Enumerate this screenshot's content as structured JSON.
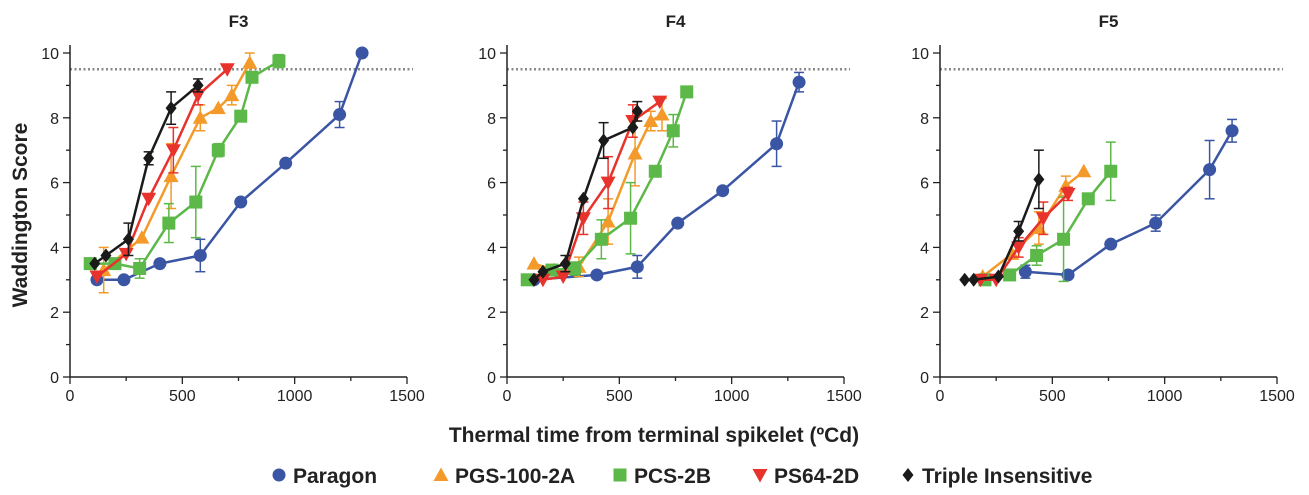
{
  "chart_data": {
    "type": "line",
    "shared": {
      "xlabel": "Thermal time from terminal spikelet (ºCd)",
      "ylabel": "Waddington Score",
      "xlim": [
        0,
        1500
      ],
      "ylim": [
        0,
        10
      ],
      "xticks": [
        0,
        500,
        1000,
        1500
      ],
      "yticks": [
        0,
        2,
        4,
        6,
        8,
        10
      ],
      "reference_line": 9.5,
      "grid": false,
      "legend_position": "bottom"
    },
    "series_styles": [
      {
        "name": "Paragon",
        "color": "#3a55a4",
        "marker": "circle"
      },
      {
        "name": "PGS-100-2A",
        "color": "#f39a2b",
        "marker": "triangle-up"
      },
      {
        "name": "PCS-2B",
        "color": "#5cb848",
        "marker": "square"
      },
      {
        "name": "PS64-2D",
        "color": "#e8322c",
        "marker": "triangle-down"
      },
      {
        "name": "Triple Insensitive",
        "color": "#1a1a1a",
        "marker": "diamond"
      }
    ],
    "panels": [
      {
        "title": "F3",
        "series": [
          {
            "name": "Paragon",
            "x": [
              120,
              240,
              400,
              580,
              760,
              960,
              1200,
              1300
            ],
            "y": [
              3.0,
              3.0,
              3.5,
              3.75,
              5.4,
              6.6,
              8.1,
              10.0
            ],
            "err": [
              0,
              0,
              0,
              0.5,
              0,
              0,
              0.4,
              0
            ]
          },
          {
            "name": "PGS-100-2A",
            "x": [
              150,
              320,
              450,
              580,
              660,
              720,
              800
            ],
            "y": [
              3.3,
              4.3,
              6.2,
              8.0,
              8.3,
              8.7,
              9.7
            ],
            "err": [
              0.7,
              0,
              1.0,
              0.4,
              0,
              0.3,
              0.3
            ]
          },
          {
            "name": "PCS-2B",
            "x": [
              90,
              200,
              310,
              440,
              560,
              660,
              760,
              810,
              930
            ],
            "y": [
              3.5,
              3.5,
              3.35,
              4.75,
              5.4,
              7.0,
              8.05,
              9.25,
              9.75
            ],
            "err": [
              0,
              0,
              0.3,
              0.6,
              1.1,
              0.2,
              0,
              0,
              0.2
            ]
          },
          {
            "name": "PS64-2D",
            "x": [
              120,
              250,
              350,
              460,
              570,
              700
            ],
            "y": [
              3.1,
              3.8,
              5.5,
              7.0,
              8.7,
              9.5
            ],
            "err": [
              0,
              0,
              0,
              0.7,
              0.3,
              0
            ]
          },
          {
            "name": "Triple Insensitive",
            "x": [
              110,
              160,
              260,
              350,
              450,
              570
            ],
            "y": [
              3.5,
              3.75,
              4.25,
              6.75,
              8.3,
              9.0
            ],
            "err": [
              0,
              0,
              0.5,
              0.2,
              0.5,
              0.2
            ]
          }
        ]
      },
      {
        "title": "F4",
        "series": [
          {
            "name": "Paragon",
            "x": [
              120,
              400,
              580,
              760,
              960,
              1200,
              1300
            ],
            "y": [
              3.0,
              3.15,
              3.4,
              4.75,
              5.75,
              7.2,
              9.1
            ],
            "err": [
              0,
              0,
              0.35,
              0,
              0,
              0.7,
              0.3
            ]
          },
          {
            "name": "PGS-100-2A",
            "x": [
              120,
              210,
              320,
              450,
              570,
              640,
              690
            ],
            "y": [
              3.5,
              3.3,
              3.4,
              4.8,
              6.9,
              7.9,
              8.1
            ],
            "err": [
              0,
              0,
              0.3,
              0.7,
              1.0,
              0.3,
              0.5
            ]
          },
          {
            "name": "PCS-2B",
            "x": [
              90,
              200,
              300,
              420,
              550,
              660,
              740,
              800
            ],
            "y": [
              3.0,
              3.3,
              3.35,
              4.25,
              4.9,
              6.35,
              7.6,
              8.8
            ],
            "err": [
              0,
              0,
              0.2,
              0.6,
              1.1,
              0,
              0.5,
              0
            ]
          },
          {
            "name": "PS64-2D",
            "x": [
              160,
              250,
              340,
              450,
              560,
              680
            ],
            "y": [
              3.0,
              3.1,
              4.9,
              6.0,
              7.9,
              8.5
            ],
            "err": [
              0,
              0,
              0.5,
              0.8,
              0.5,
              0
            ]
          },
          {
            "name": "Triple Insensitive",
            "x": [
              120,
              160,
              260,
              340,
              430,
              560,
              580
            ],
            "y": [
              3.0,
              3.25,
              3.5,
              5.5,
              7.3,
              7.7,
              8.2
            ],
            "err": [
              0,
              0,
              0.25,
              0,
              0.55,
              0,
              0.3
            ]
          }
        ]
      },
      {
        "title": "F5",
        "series": [
          {
            "name": "Paragon",
            "x": [
              380,
              570,
              760,
              960,
              1200,
              1300
            ],
            "y": [
              3.25,
              3.15,
              4.1,
              4.75,
              6.4,
              7.6
            ],
            "err": [
              0.2,
              0,
              0,
              0.25,
              0.9,
              0.35
            ]
          },
          {
            "name": "PGS-100-2A",
            "x": [
              190,
              320,
              440,
              560,
              640
            ],
            "y": [
              3.1,
              3.8,
              4.6,
              5.9,
              6.35
            ],
            "err": [
              0,
              0,
              0.5,
              0.3,
              0
            ]
          },
          {
            "name": "PCS-2B",
            "x": [
              200,
              310,
              430,
              550,
              660,
              760
            ],
            "y": [
              3.0,
              3.15,
              3.75,
              4.25,
              5.5,
              6.35
            ],
            "err": [
              0,
              0,
              0.3,
              1.3,
              0,
              0.9
            ]
          },
          {
            "name": "PS64-2D",
            "x": [
              180,
              250,
              350,
              460,
              570
            ],
            "y": [
              3.0,
              3.0,
              4.0,
              4.9,
              5.65
            ],
            "err": [
              0,
              0,
              0.3,
              0.5,
              0.2
            ]
          },
          {
            "name": "Triple Insensitive",
            "x": [
              110,
              150,
              260,
              350,
              440
            ],
            "y": [
              3.0,
              3.0,
              3.1,
              4.5,
              6.1
            ],
            "err": [
              0,
              0,
              0,
              0.3,
              0.9
            ]
          }
        ]
      }
    ]
  }
}
